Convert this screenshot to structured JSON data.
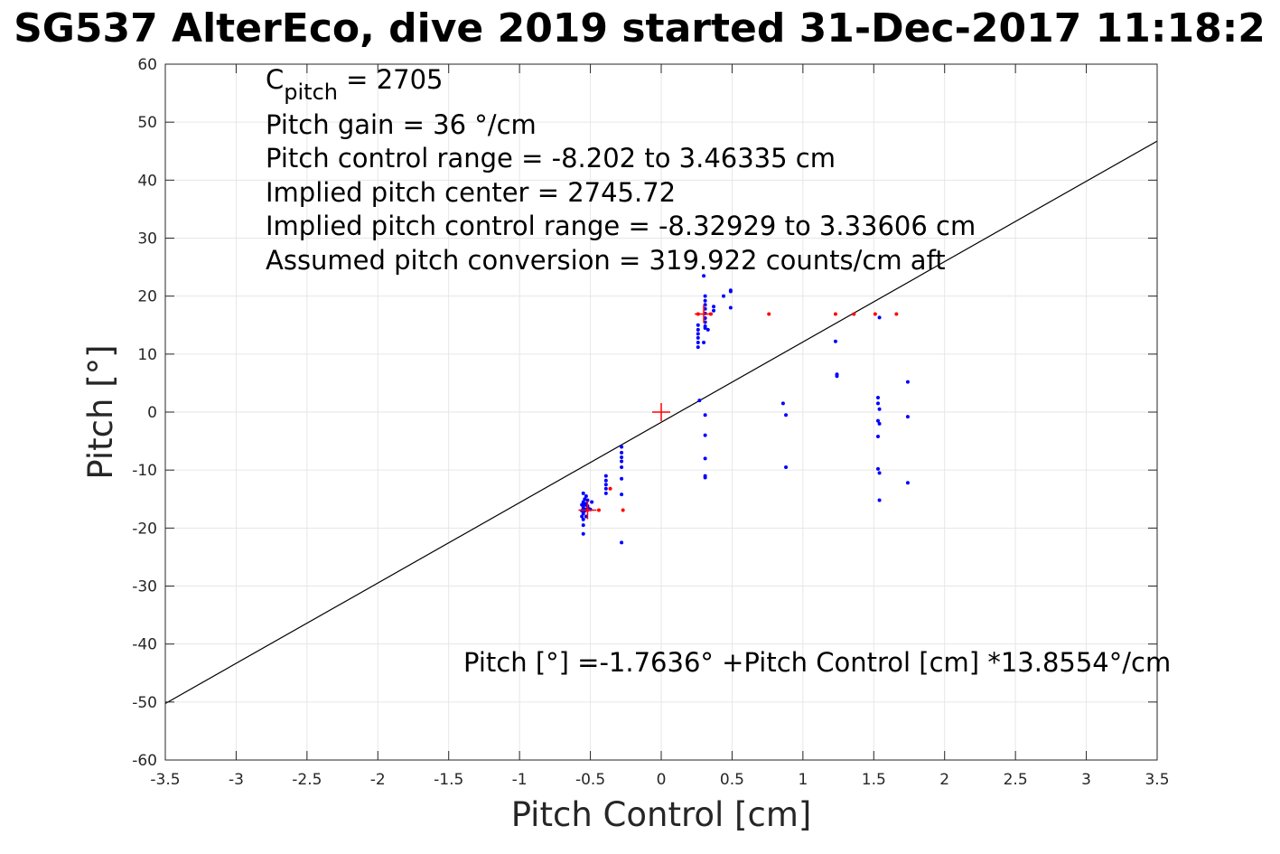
{
  "chart_data": {
    "type": "scatter",
    "title": "SG537 AlterEco, dive 2019 started 31-Dec-2017 11:18:2",
    "xlabel": "Pitch Control [cm]",
    "ylabel": "Pitch [°]",
    "xlim": [
      -3.5,
      3.5
    ],
    "ylim": [
      -60,
      60
    ],
    "x_ticks": [
      -3.5,
      -3,
      -2.5,
      -2,
      -1.5,
      -1,
      -0.5,
      0,
      0.5,
      1,
      1.5,
      2,
      2.5,
      3,
      3.5
    ],
    "x_tick_labels": [
      "-3.5",
      "-3",
      "-2.5",
      "-2",
      "-1.5",
      "-1",
      "-0.5",
      "0",
      "0.5",
      "1",
      "1.5",
      "2",
      "2.5",
      "3",
      "3.5"
    ],
    "y_ticks": [
      -60,
      -50,
      -40,
      -30,
      -20,
      -10,
      0,
      10,
      20,
      30,
      40,
      50,
      60
    ],
    "y_tick_labels": [
      "-60",
      "-50",
      "-40",
      "-30",
      "-20",
      "-10",
      "0",
      "10",
      "20",
      "30",
      "40",
      "50",
      "60"
    ],
    "grid": true,
    "annotations": {
      "c_pitch_base": "C",
      "c_pitch_sub": "pitch",
      "c_pitch_value": " = 2705",
      "pitch_gain": "Pitch gain = 36 °/cm",
      "control_range": "Pitch control range = -8.202 to 3.46335 cm",
      "implied_center": "Implied pitch center = 2745.72",
      "implied_range": "Implied pitch control range = -8.32929 to 3.33606 cm",
      "conversion": "Assumed pitch conversion = 319.922 counts/cm aft",
      "fit_equation": "Pitch [°] =-1.7636° +Pitch Control [cm] *13.8554°/cm"
    },
    "fit_line": {
      "intercept": -1.7636,
      "slope": 13.8554,
      "color": "#000000"
    },
    "series": [
      {
        "color": "#0000ff",
        "marker": "dot",
        "points": [
          [
            -0.56,
            -16
          ],
          [
            -0.56,
            -17
          ],
          [
            -0.56,
            -18
          ],
          [
            -0.55,
            -14
          ],
          [
            -0.55,
            -15.5
          ],
          [
            -0.55,
            -16.5
          ],
          [
            -0.55,
            -17.5
          ],
          [
            -0.55,
            -18.5
          ],
          [
            -0.55,
            -19.5
          ],
          [
            -0.55,
            -21
          ],
          [
            -0.54,
            -15
          ],
          [
            -0.54,
            -16
          ],
          [
            -0.54,
            -17
          ],
          [
            -0.53,
            -14.5
          ],
          [
            -0.53,
            -15.8
          ],
          [
            -0.53,
            -16.8
          ],
          [
            -0.53,
            -18
          ],
          [
            -0.52,
            -15.2
          ],
          [
            -0.52,
            -16.2
          ],
          [
            -0.51,
            -16.7
          ],
          [
            -0.5,
            -16.8
          ],
          [
            -0.49,
            -15.5
          ],
          [
            -0.39,
            -11
          ],
          [
            -0.39,
            -11.8
          ],
          [
            -0.39,
            -12.5
          ],
          [
            -0.39,
            -13.2
          ],
          [
            -0.39,
            -14
          ],
          [
            -0.28,
            -6
          ],
          [
            -0.28,
            -7
          ],
          [
            -0.28,
            -7.8
          ],
          [
            -0.28,
            -8.5
          ],
          [
            -0.28,
            -9.5
          ],
          [
            -0.28,
            -11.5
          ],
          [
            -0.28,
            -14.2
          ],
          [
            -0.28,
            -22.5
          ],
          [
            0.26,
            11.2
          ],
          [
            0.26,
            12
          ],
          [
            0.26,
            12.8
          ],
          [
            0.26,
            13.5
          ],
          [
            0.26,
            14.2
          ],
          [
            0.26,
            15
          ],
          [
            0.27,
            2
          ],
          [
            0.3,
            23.5
          ],
          [
            0.3,
            12
          ],
          [
            0.31,
            20
          ],
          [
            0.31,
            19.2
          ],
          [
            0.31,
            18.5
          ],
          [
            0.31,
            17.8
          ],
          [
            0.31,
            17
          ],
          [
            0.31,
            16.2
          ],
          [
            0.31,
            15.5
          ],
          [
            0.31,
            14.8
          ],
          [
            0.31,
            14.5
          ],
          [
            0.31,
            -0.5
          ],
          [
            0.31,
            -4
          ],
          [
            0.31,
            -8
          ],
          [
            0.31,
            -11
          ],
          [
            0.31,
            -11.3
          ],
          [
            0.33,
            14.2
          ],
          [
            0.37,
            17.5
          ],
          [
            0.37,
            18.2
          ],
          [
            0.44,
            20
          ],
          [
            0.49,
            20.8
          ],
          [
            0.49,
            21
          ],
          [
            0.49,
            18
          ],
          [
            0.86,
            1.5
          ],
          [
            0.88,
            -0.5
          ],
          [
            0.88,
            -9.5
          ],
          [
            1.23,
            12.2
          ],
          [
            1.24,
            6.5
          ],
          [
            1.24,
            6.2
          ],
          [
            1.53,
            2.5
          ],
          [
            1.53,
            1.5
          ],
          [
            1.53,
            -1.5
          ],
          [
            1.53,
            -4.2
          ],
          [
            1.53,
            -9.8
          ],
          [
            1.54,
            16.3
          ],
          [
            1.54,
            0.5
          ],
          [
            1.54,
            -2
          ],
          [
            1.54,
            -10.5
          ],
          [
            1.54,
            -15.2
          ],
          [
            1.74,
            5.2
          ],
          [
            1.74,
            -0.8
          ],
          [
            1.74,
            -12.2
          ]
        ]
      },
      {
        "color": "#ff0000",
        "marker": "dot",
        "points": [
          [
            -0.52,
            -16.9
          ],
          [
            -0.44,
            -16.9
          ],
          [
            -0.36,
            -13.2
          ],
          [
            -0.27,
            -16.9
          ],
          [
            0.26,
            16.9
          ],
          [
            0.35,
            16.9
          ],
          [
            0.76,
            16.9
          ],
          [
            1.23,
            16.9
          ],
          [
            1.36,
            16.9
          ],
          [
            1.51,
            16.9
          ],
          [
            1.66,
            16.9
          ]
        ]
      },
      {
        "color": "#ff0000",
        "marker": "plus",
        "points": [
          [
            -0.52,
            -16.9
          ],
          [
            0,
            0
          ],
          [
            0.3,
            16.9
          ]
        ]
      }
    ]
  }
}
